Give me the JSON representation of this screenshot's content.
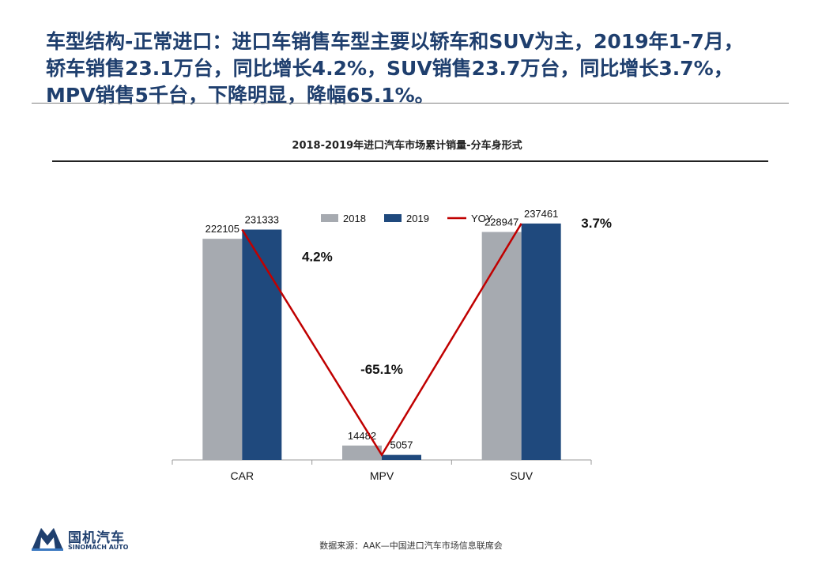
{
  "headline": [
    "车型结构-正常进口：进口车销售车型主要以轿车和SUV为主，2019年1-7月，",
    "轿车销售23.1万台，同比增长4.2%，SUV销售23.7万台，同比增长3.7%，",
    "MPV销售5千台，下降明显，降幅65.1%。"
  ],
  "logo": {
    "name": "国机汽车",
    "sub": "SINOMACH AUTO"
  },
  "source": "数据来源：AAK—中国进口汽车市场信息联席会",
  "chart_data": {
    "type": "bar",
    "title": "2018-2019年进口汽车市场累计销量-分车身形式",
    "categories": [
      "CAR",
      "MPV",
      "SUV"
    ],
    "series": [
      {
        "name": "2018",
        "values": [
          222105,
          14482,
          228947
        ],
        "color": "#a6aab0"
      },
      {
        "name": "2019",
        "values": [
          231333,
          5057,
          237461
        ],
        "color": "#1f497d"
      }
    ],
    "yoy": {
      "name": "YOY",
      "values": [
        "4.2%",
        "-65.1%",
        "3.7%"
      ],
      "color": "#c00000"
    },
    "ylim": [
      0,
      250000
    ],
    "legend": "top",
    "grid": false
  }
}
